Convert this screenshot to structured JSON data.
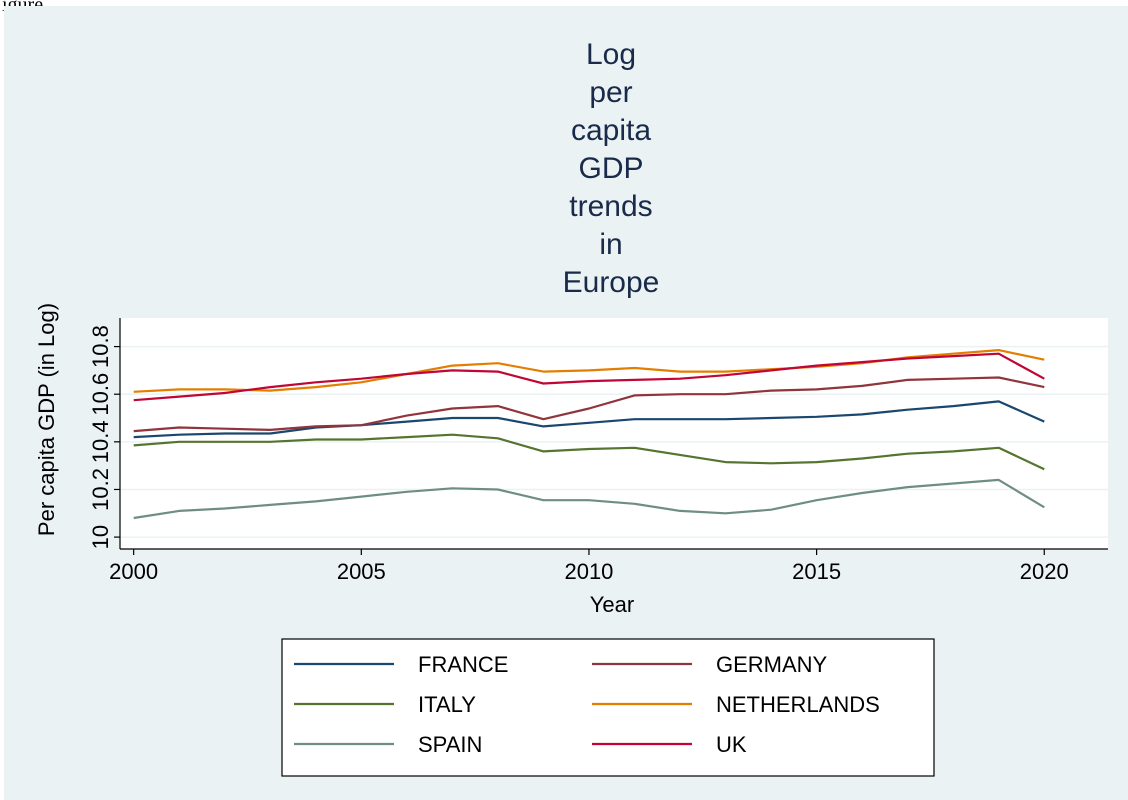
{
  "figure_label": "igure",
  "colors": {
    "background": "#eaf2f3",
    "plot_background": "#ffffff",
    "grid": "#eaf2f3"
  },
  "chart_data": {
    "type": "line",
    "title_lines": [
      "Log",
      "per",
      "capita",
      "GDP",
      "trends",
      "in",
      "Europe"
    ],
    "xlabel": "Year",
    "ylabel": "Per capita GDP (in Log)",
    "xlim": [
      1999.7,
      2021.4
    ],
    "ylim": [
      9.95,
      10.92
    ],
    "xticks": [
      2000,
      2005,
      2010,
      2015,
      2020
    ],
    "yticks": [
      10,
      10.2,
      10.4,
      10.6,
      10.8
    ],
    "ytick_labels": [
      "10",
      "10.2",
      "10.4",
      "10.6",
      "10.8"
    ],
    "grid": true,
    "legend_position": "bottom",
    "x": [
      2000,
      2001,
      2002,
      2003,
      2004,
      2005,
      2006,
      2007,
      2008,
      2009,
      2010,
      2011,
      2012,
      2013,
      2014,
      2015,
      2016,
      2017,
      2018,
      2019,
      2020
    ],
    "series": [
      {
        "name": "FRANCE",
        "color": "#1a476f",
        "values": [
          10.42,
          10.43,
          10.435,
          10.435,
          10.46,
          10.47,
          10.485,
          10.5,
          10.5,
          10.465,
          10.48,
          10.495,
          10.495,
          10.495,
          10.5,
          10.505,
          10.515,
          10.535,
          10.55,
          10.57,
          10.485
        ]
      },
      {
        "name": "GERMANY",
        "color": "#90353b",
        "values": [
          10.445,
          10.46,
          10.455,
          10.45,
          10.465,
          10.47,
          10.51,
          10.54,
          10.55,
          10.495,
          10.54,
          10.595,
          10.6,
          10.6,
          10.615,
          10.62,
          10.635,
          10.66,
          10.665,
          10.67,
          10.63
        ]
      },
      {
        "name": "ITALY",
        "color": "#55752f",
        "values": [
          10.385,
          10.4,
          10.4,
          10.4,
          10.41,
          10.41,
          10.42,
          10.43,
          10.415,
          10.36,
          10.37,
          10.375,
          10.345,
          10.315,
          10.31,
          10.315,
          10.33,
          10.35,
          10.36,
          10.375,
          10.285
        ]
      },
      {
        "name": "NETHERLANDS",
        "color": "#e37e00",
        "values": [
          10.61,
          10.62,
          10.62,
          10.615,
          10.63,
          10.65,
          10.685,
          10.72,
          10.73,
          10.695,
          10.7,
          10.71,
          10.695,
          10.695,
          10.705,
          10.715,
          10.73,
          10.755,
          10.77,
          10.785,
          10.745
        ]
      },
      {
        "name": "SPAIN",
        "color": "#6e8e84",
        "values": [
          10.08,
          10.11,
          10.12,
          10.135,
          10.15,
          10.17,
          10.19,
          10.205,
          10.2,
          10.155,
          10.155,
          10.14,
          10.11,
          10.1,
          10.115,
          10.155,
          10.185,
          10.21,
          10.225,
          10.24,
          10.125
        ]
      },
      {
        "name": "UK",
        "color": "#c10534",
        "values": [
          10.575,
          10.59,
          10.605,
          10.63,
          10.65,
          10.665,
          10.685,
          10.7,
          10.695,
          10.645,
          10.655,
          10.66,
          10.665,
          10.68,
          10.7,
          10.72,
          10.735,
          10.75,
          10.76,
          10.77,
          10.665
        ]
      }
    ]
  }
}
